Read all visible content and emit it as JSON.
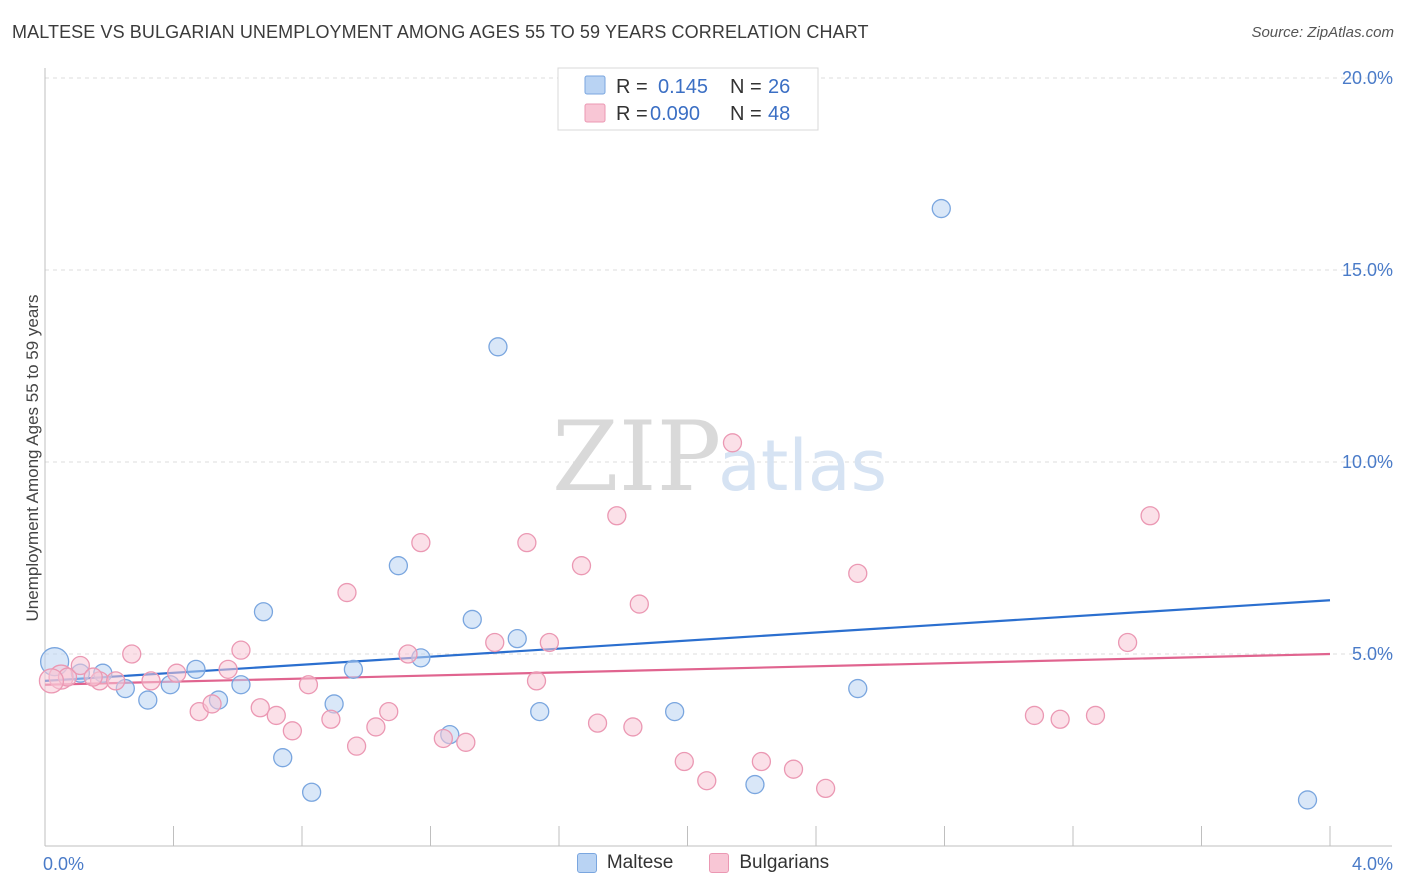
{
  "title": "MALTESE VS BULGARIAN UNEMPLOYMENT AMONG AGES 55 TO 59 YEARS CORRELATION CHART",
  "source": "Source: ZipAtlas.com",
  "watermark": {
    "zip": "ZIP",
    "atlas": "atlas"
  },
  "legend": {
    "r_label": "R =",
    "n_label": "N =",
    "maltese": {
      "r": "0.145",
      "n": "26"
    },
    "bulgarians": {
      "r": "0.090",
      "n": "48"
    }
  },
  "colors": {
    "blue_fill": "#b9d3f3",
    "blue_stroke": "#7aa6df",
    "blue_line": "#2b6fcf",
    "pink_fill": "#f8c6d5",
    "pink_stroke": "#eb98b3",
    "pink_line": "#e0648f"
  },
  "chart_data": {
    "type": "scatter",
    "title": "MALTESE VS BULGARIAN UNEMPLOYMENT AMONG AGES 55 TO 59 YEARS CORRELATION CHART",
    "xlabel": "",
    "ylabel": "Unemployment Among Ages 55 to 59 years",
    "xlim": [
      0.0,
      4.0
    ],
    "ylim": [
      0.0,
      20.0
    ],
    "x_tick_labels": [
      "0.0%",
      "4.0%"
    ],
    "y_ticks": [
      5,
      10,
      15,
      20
    ],
    "y_tick_labels": [
      "5.0%",
      "10.0%",
      "15.0%",
      "20.0%"
    ],
    "grid": true,
    "series": [
      {
        "name": "Maltese",
        "color": "blue",
        "points": [
          [
            0.03,
            4.8
          ],
          [
            0.11,
            4.5
          ],
          [
            0.18,
            4.5
          ],
          [
            0.25,
            4.1
          ],
          [
            0.32,
            3.8
          ],
          [
            0.39,
            4.2
          ],
          [
            0.47,
            4.6
          ],
          [
            0.54,
            3.8
          ],
          [
            0.61,
            4.2
          ],
          [
            0.68,
            6.1
          ],
          [
            0.74,
            2.3
          ],
          [
            0.83,
            1.4
          ],
          [
            0.9,
            3.7
          ],
          [
            0.96,
            4.6
          ],
          [
            1.1,
            7.3
          ],
          [
            1.17,
            4.9
          ],
          [
            1.26,
            2.9
          ],
          [
            1.33,
            5.9
          ],
          [
            1.41,
            13.0
          ],
          [
            1.47,
            5.4
          ],
          [
            1.54,
            3.5
          ],
          [
            1.96,
            3.5
          ],
          [
            2.21,
            1.6
          ],
          [
            2.53,
            4.1
          ],
          [
            2.79,
            16.6
          ],
          [
            3.93,
            1.2
          ]
        ],
        "trend": {
          "y_at_0": 4.3,
          "y_at_4": 6.4
        }
      },
      {
        "name": "Bulgarians",
        "color": "pink",
        "points": [
          [
            0.05,
            4.4
          ],
          [
            0.07,
            4.4
          ],
          [
            0.11,
            4.7
          ],
          [
            0.17,
            4.3
          ],
          [
            0.22,
            4.3
          ],
          [
            0.27,
            5.0
          ],
          [
            0.33,
            4.3
          ],
          [
            0.41,
            4.5
          ],
          [
            0.48,
            3.5
          ],
          [
            0.52,
            3.7
          ],
          [
            0.57,
            4.6
          ],
          [
            0.61,
            5.1
          ],
          [
            0.67,
            3.6
          ],
          [
            0.72,
            3.4
          ],
          [
            0.77,
            3.0
          ],
          [
            0.82,
            4.2
          ],
          [
            0.89,
            3.3
          ],
          [
            0.94,
            6.6
          ],
          [
            0.97,
            2.6
          ],
          [
            1.03,
            3.1
          ],
          [
            1.07,
            3.5
          ],
          [
            1.13,
            5.0
          ],
          [
            1.17,
            7.9
          ],
          [
            1.24,
            2.8
          ],
          [
            1.31,
            2.7
          ],
          [
            1.4,
            5.3
          ],
          [
            1.5,
            7.9
          ],
          [
            1.53,
            4.3
          ],
          [
            1.57,
            5.3
          ],
          [
            1.67,
            7.3
          ],
          [
            1.72,
            3.2
          ],
          [
            1.78,
            8.6
          ],
          [
            1.83,
            3.1
          ],
          [
            1.85,
            6.3
          ],
          [
            1.99,
            2.2
          ],
          [
            2.06,
            1.7
          ],
          [
            2.14,
            10.5
          ],
          [
            2.23,
            2.2
          ],
          [
            2.33,
            2.0
          ],
          [
            2.43,
            1.5
          ],
          [
            2.53,
            7.1
          ],
          [
            3.08,
            3.4
          ],
          [
            3.16,
            3.3
          ],
          [
            3.27,
            3.4
          ],
          [
            3.37,
            5.3
          ],
          [
            3.44,
            8.6
          ],
          [
            0.02,
            4.3
          ],
          [
            0.15,
            4.4
          ]
        ],
        "trend": {
          "y_at_0": 4.2,
          "y_at_4": 5.0
        }
      }
    ]
  },
  "bottom_legend": [
    "Maltese",
    "Bulgarians"
  ]
}
